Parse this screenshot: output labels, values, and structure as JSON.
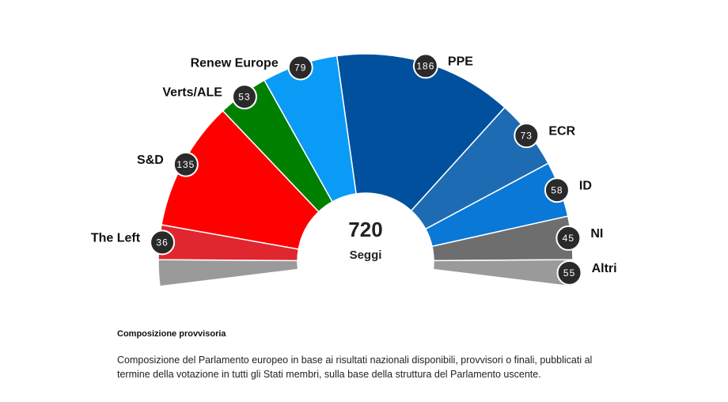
{
  "chart_data": {
    "type": "parliament",
    "total": 720,
    "total_label": "Seggi",
    "categories": [
      "The Left",
      "S&D",
      "Verts/ALE",
      "Renew Europe",
      "PPE",
      "ECR",
      "ID",
      "NI",
      "Altri"
    ],
    "values": [
      36,
      135,
      53,
      79,
      186,
      73,
      58,
      45,
      55
    ],
    "colors": [
      "#e0262f",
      "#ff0000",
      "#008000",
      "#0a9bf7",
      "#00509e",
      "#1d6cb3",
      "#0a78d6",
      "#6e6e6e",
      "#9a9a9a"
    ]
  },
  "notes": {
    "heading": "Composizione provvisoria",
    "text": "Composizione del Parlamento europeo in base ai risultati nazionali disponibili, provvisori o finali, pubblicati al termine della votazione in tutti gli Stati membri, sulla base della struttura del Parlamento uscente."
  }
}
